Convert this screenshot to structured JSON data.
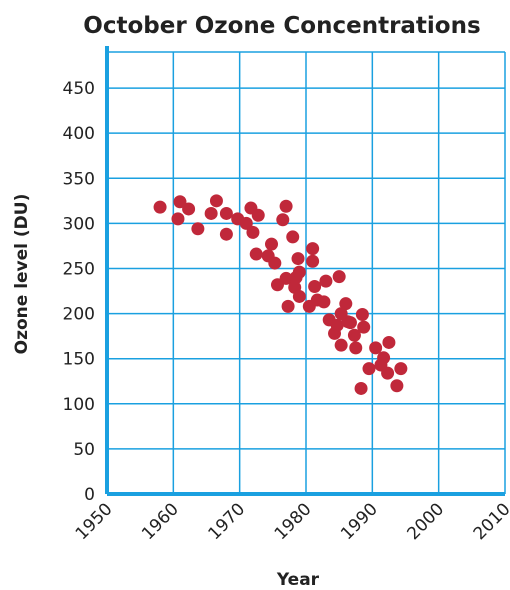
{
  "chart_data": {
    "type": "scatter",
    "title": "October Ozone Concentrations",
    "xlabel": "Year",
    "ylabel": "Ozone level (DU)",
    "xlim": [
      1950,
      2010
    ],
    "ylim": [
      0,
      490
    ],
    "x_ticks": [
      1950,
      1960,
      1970,
      1980,
      1990,
      2000,
      2010
    ],
    "y_ticks": [
      0,
      50,
      100,
      150,
      200,
      250,
      300,
      350,
      400,
      450
    ],
    "grid": true,
    "colors": {
      "grid": "#1aa0e0",
      "axis": "#1aa0e0",
      "point": "#c0283a"
    },
    "points": [
      {
        "x": 1958.0,
        "y": 318
      },
      {
        "x": 1960.7,
        "y": 305
      },
      {
        "x": 1961.0,
        "y": 324
      },
      {
        "x": 1962.3,
        "y": 316
      },
      {
        "x": 1963.7,
        "y": 294
      },
      {
        "x": 1965.7,
        "y": 311
      },
      {
        "x": 1966.5,
        "y": 325
      },
      {
        "x": 1968.0,
        "y": 311
      },
      {
        "x": 1968.0,
        "y": 288
      },
      {
        "x": 1969.7,
        "y": 305
      },
      {
        "x": 1971.0,
        "y": 300
      },
      {
        "x": 1971.7,
        "y": 317
      },
      {
        "x": 1972.0,
        "y": 290
      },
      {
        "x": 1972.8,
        "y": 309
      },
      {
        "x": 1972.5,
        "y": 266
      },
      {
        "x": 1974.3,
        "y": 264
      },
      {
        "x": 1974.8,
        "y": 277
      },
      {
        "x": 1975.3,
        "y": 256
      },
      {
        "x": 1975.7,
        "y": 232
      },
      {
        "x": 1976.5,
        "y": 304
      },
      {
        "x": 1977.0,
        "y": 319
      },
      {
        "x": 1977.0,
        "y": 239
      },
      {
        "x": 1977.3,
        "y": 208
      },
      {
        "x": 1978.0,
        "y": 285
      },
      {
        "x": 1978.3,
        "y": 229
      },
      {
        "x": 1978.5,
        "y": 240
      },
      {
        "x": 1978.8,
        "y": 261
      },
      {
        "x": 1979.0,
        "y": 246
      },
      {
        "x": 1979.0,
        "y": 219
      },
      {
        "x": 1980.5,
        "y": 208
      },
      {
        "x": 1981.0,
        "y": 272
      },
      {
        "x": 1981.0,
        "y": 258
      },
      {
        "x": 1981.3,
        "y": 230
      },
      {
        "x": 1981.7,
        "y": 215
      },
      {
        "x": 1982.7,
        "y": 213
      },
      {
        "x": 1983.0,
        "y": 236
      },
      {
        "x": 1983.5,
        "y": 193
      },
      {
        "x": 1984.3,
        "y": 178
      },
      {
        "x": 1984.7,
        "y": 187
      },
      {
        "x": 1985.0,
        "y": 241
      },
      {
        "x": 1985.3,
        "y": 200
      },
      {
        "x": 1985.3,
        "y": 165
      },
      {
        "x": 1986.0,
        "y": 211
      },
      {
        "x": 1986.3,
        "y": 191
      },
      {
        "x": 1986.7,
        "y": 190
      },
      {
        "x": 1987.3,
        "y": 176
      },
      {
        "x": 1987.5,
        "y": 162
      },
      {
        "x": 1988.3,
        "y": 117
      },
      {
        "x": 1988.5,
        "y": 199
      },
      {
        "x": 1988.7,
        "y": 185
      },
      {
        "x": 1989.5,
        "y": 139
      },
      {
        "x": 1990.5,
        "y": 162
      },
      {
        "x": 1991.3,
        "y": 143
      },
      {
        "x": 1991.7,
        "y": 151
      },
      {
        "x": 1992.3,
        "y": 134
      },
      {
        "x": 1992.5,
        "y": 168
      },
      {
        "x": 1993.7,
        "y": 120
      },
      {
        "x": 1994.3,
        "y": 139
      }
    ]
  }
}
